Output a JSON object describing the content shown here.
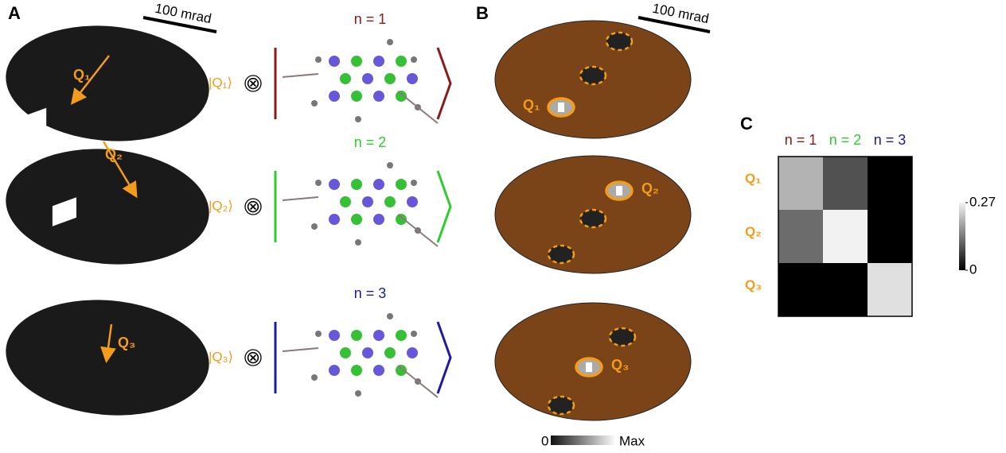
{
  "panel_labels": {
    "A": "A",
    "B": "B",
    "C": "C"
  },
  "panel_a": {
    "scale_bar": "100 mrad",
    "tensor": "⊗",
    "rows": [
      {
        "q_label": "Q₁",
        "ket": "|Q₁⟩",
        "mode": "n = 1",
        "color": "#8b1a1a"
      },
      {
        "q_label": "Q₂",
        "ket": "|Q₂⟩",
        "mode": "n = 2",
        "color": "#2ecc2e"
      },
      {
        "q_label": "Q₃",
        "ket": "|Q₃⟩",
        "mode": "n = 3",
        "color": "#1c1c9c"
      }
    ]
  },
  "panel_b": {
    "scale_bar": "100 mrad",
    "labels": [
      "Q₁",
      "Q₂",
      "Q₃"
    ],
    "colorbar": {
      "min_label": "0",
      "max_label": "Max"
    }
  },
  "chart_data": {
    "type": "heatmap",
    "x_categories": [
      "n = 1",
      "n = 2",
      "n = 3"
    ],
    "x_colors": [
      "#8b1a1a",
      "#2ecc2e",
      "#1c1c9c"
    ],
    "y_categories": [
      "Q₁",
      "Q₂",
      "Q₃"
    ],
    "values": [
      [
        0.2,
        0.09,
        0
      ],
      [
        0.12,
        0.27,
        0
      ],
      [
        0,
        0,
        0.25
      ]
    ],
    "clim": [
      0,
      0.27
    ],
    "cticks": [
      0,
      0.27
    ]
  }
}
